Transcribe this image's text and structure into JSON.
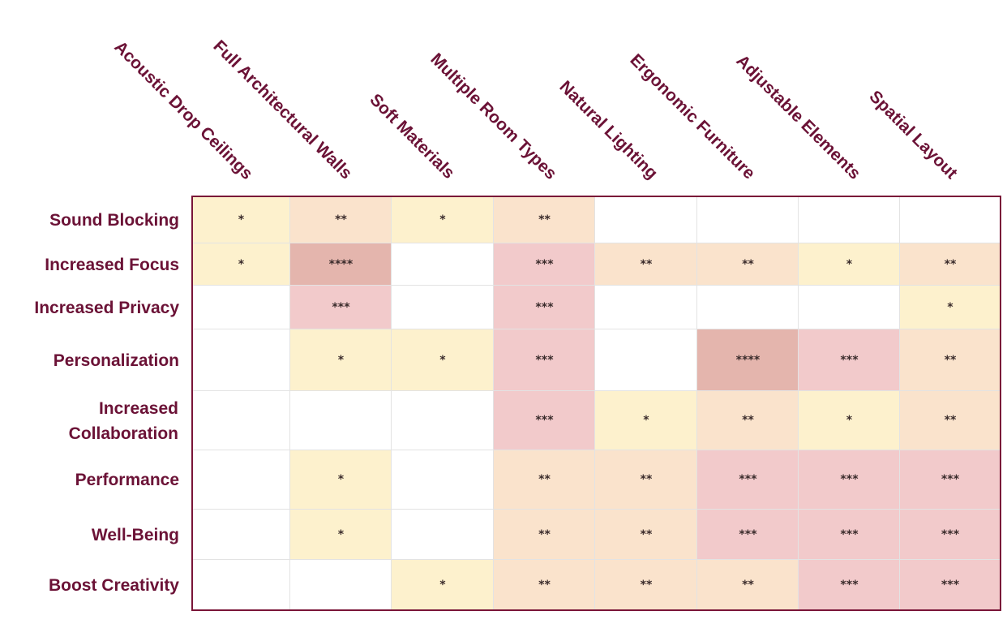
{
  "chart_data": {
    "type": "heatmap",
    "columns": [
      "Acoustic Drop Ceilings",
      "Full Architectural Walls",
      "Soft Materials",
      "Multiple Room Types",
      "Natural Lighting",
      "Ergonomic Furniture",
      "Adjustable Elements",
      "Spatial Layout"
    ],
    "rows": [
      "Sound Blocking",
      "Increased Focus",
      "Increased Privacy",
      "Personalization",
      "Increased Collaboration",
      "Performance",
      "Well-Being",
      "Boost Creativity"
    ],
    "values": [
      [
        1,
        2,
        1,
        2,
        0,
        0,
        0,
        0
      ],
      [
        1,
        4,
        0,
        3,
        2,
        2,
        1,
        2
      ],
      [
        0,
        3,
        0,
        3,
        0,
        0,
        0,
        1
      ],
      [
        0,
        1,
        1,
        3,
        0,
        4,
        3,
        2
      ],
      [
        0,
        0,
        0,
        3,
        1,
        2,
        1,
        2
      ],
      [
        0,
        1,
        0,
        2,
        2,
        3,
        3,
        3
      ],
      [
        0,
        1,
        0,
        2,
        2,
        3,
        3,
        3
      ],
      [
        0,
        0,
        1,
        2,
        2,
        2,
        3,
        3
      ]
    ],
    "level_marks": [
      "",
      "*",
      "**",
      "***",
      "****"
    ],
    "level_colors": [
      "#ffffff",
      "#fdf1cd",
      "#fae3cc",
      "#f2cacb",
      "#e4b5ad"
    ],
    "frame_color": "#7a1538",
    "label_color": "#6b1236"
  }
}
